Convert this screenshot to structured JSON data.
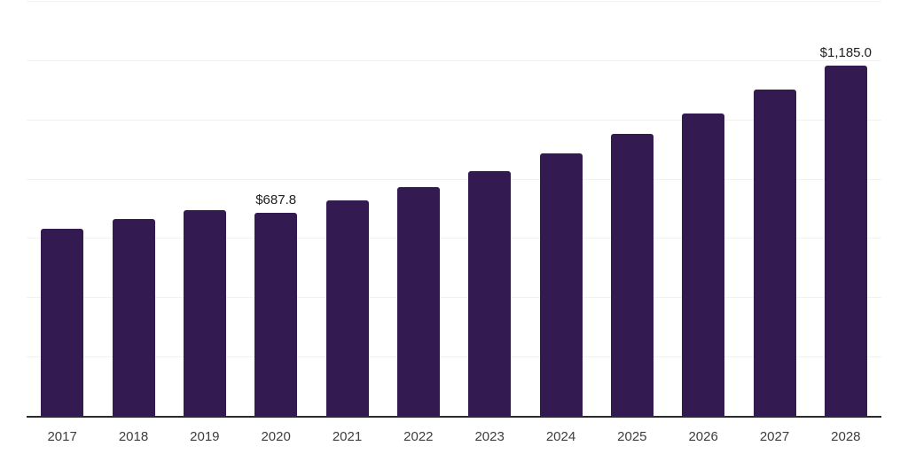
{
  "chart_data": {
    "type": "bar",
    "title": "",
    "xlabel": "",
    "ylabel": "",
    "categories": [
      "2017",
      "2018",
      "2019",
      "2020",
      "2021",
      "2022",
      "2023",
      "2024",
      "2025",
      "2026",
      "2027",
      "2028"
    ],
    "values": [
      635,
      667,
      698,
      687.8,
      731,
      776,
      830,
      889,
      953,
      1023,
      1104,
      1185
    ],
    "data_labels": [
      null,
      null,
      null,
      "$687.8",
      null,
      null,
      null,
      null,
      null,
      null,
      null,
      "$1,185.0"
    ],
    "ylim": [
      0,
      1400
    ],
    "grid": true,
    "grid_step": 200,
    "legend": "none",
    "colors": {
      "bar": "#331a50",
      "axis_line": "#2b2b2b",
      "gridline": "#f2f2f2",
      "tick_label": "#3d3d3d",
      "data_label": "#1f1f1f",
      "background": "#ffffff"
    }
  }
}
